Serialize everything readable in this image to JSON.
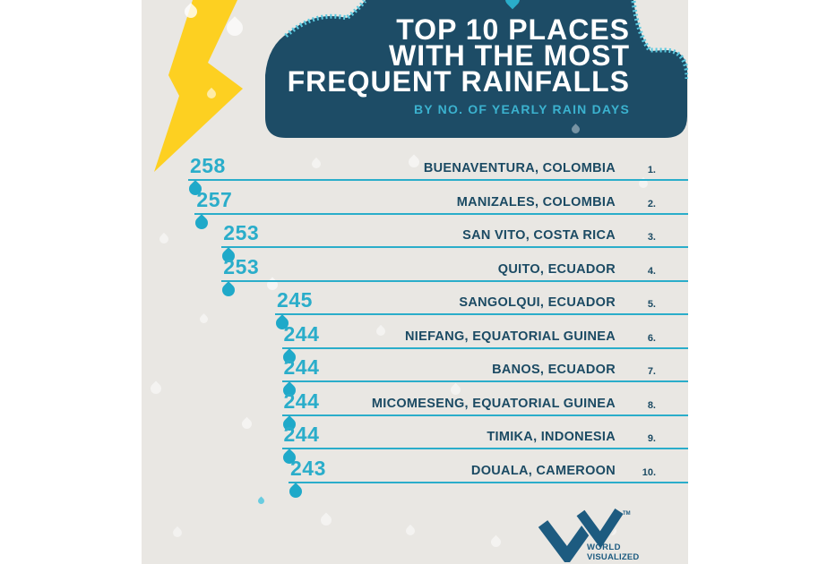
{
  "page": {
    "background": "#ffffff",
    "canvas_background": "#e9e7e3"
  },
  "header": {
    "title_lines": [
      "TOP 10 PLACES",
      "WITH THE MOST",
      "FREQUENT RAINFALLS"
    ],
    "subtitle": "BY NO. OF YEARLY RAIN DAYS"
  },
  "chart_data": {
    "type": "bar",
    "title": "Top 10 places with the most frequent rainfalls",
    "subtitle": "By no. of yearly rain days",
    "unit": "yearly rain days",
    "orientation": "horizontal, right-aligned bars, longer bar = more rain days",
    "value_range": [
      243,
      258
    ],
    "entries": [
      {
        "rank": "1.",
        "place": "BUENAVENTURA, COLOMBIA",
        "value": 258
      },
      {
        "rank": "2.",
        "place": "MANIZALES, COLOMBIA",
        "value": 257
      },
      {
        "rank": "3.",
        "place": "SAN VITO, COSTA RICA",
        "value": 253
      },
      {
        "rank": "4.",
        "place": "QUITO, ECUADOR",
        "value": 253
      },
      {
        "rank": "5.",
        "place": "SANGOLQUI, ECUADOR",
        "value": 245
      },
      {
        "rank": "6.",
        "place": "NIEFANG, EQUATORIAL GUINEA",
        "value": 244
      },
      {
        "rank": "7.",
        "place": "BANOS, ECUADOR",
        "value": 244
      },
      {
        "rank": "8.",
        "place": "MICOMESENG, EQUATORIAL GUINEA",
        "value": 244
      },
      {
        "rank": "9.",
        "place": "TIMIKA, INDONESIA",
        "value": 244
      },
      {
        "rank": "10.",
        "place": "DOUALA, CAMEROON",
        "value": 243
      }
    ]
  },
  "footer": {
    "brand_lines": [
      "WORLD",
      "VISUALIZED"
    ],
    "trademark": "TM"
  },
  "icons": {
    "lightning": "lightning-bolt-icon",
    "cloud": "cloud-shape",
    "raindrop": "water-drop-icon",
    "logo": "wv-double-check-logo"
  },
  "colors": {
    "navy": "#1d4c66",
    "teal": "#2aadca",
    "hatch_cyan": "#5bc9df",
    "yellow": "#fdd021",
    "text_navy": "#1b4a63",
    "logo_navy": "#1d5b80"
  }
}
